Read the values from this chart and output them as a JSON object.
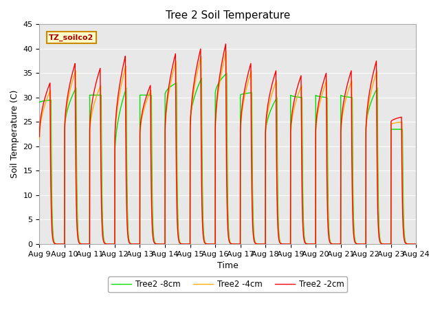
{
  "title": "Tree 2 Soil Temperature",
  "ylabel": "Soil Temperature (C)",
  "xlabel": "Time",
  "ylim": [
    0,
    45
  ],
  "yticks": [
    0,
    5,
    10,
    15,
    20,
    25,
    30,
    35,
    40,
    45
  ],
  "xtick_labels": [
    "Aug 9",
    "Aug 10",
    "Aug 11",
    "Aug 12",
    "Aug 13",
    "Aug 14",
    "Aug 15",
    "Aug 16",
    "Aug 17",
    "Aug 18",
    "Aug 19",
    "Aug 20",
    "Aug 21",
    "Aug 22",
    "Aug 23",
    "Aug 24"
  ],
  "label_box_text": "TZ_soilco2",
  "label_box_bg": "#ffffcc",
  "label_box_edge": "#cc8800",
  "label_box_text_color": "#aa0000",
  "line_2cm_color": "#ff0000",
  "line_4cm_color": "#ffaa00",
  "line_8cm_color": "#00dd00",
  "line_width": 1.0,
  "background_color": "#ffffff",
  "plot_bg_color": "#e8e8e8",
  "grid_color": "#ffffff",
  "legend_labels": [
    "Tree2 -2cm",
    "Tree2 -4cm",
    "Tree2 -8cm"
  ],
  "title_fontsize": 11,
  "axis_label_fontsize": 9,
  "tick_fontsize": 8,
  "days": 15,
  "day_peaks_2cm": [
    33.0,
    37.0,
    36.0,
    38.5,
    32.5,
    39.0,
    40.0,
    41.0,
    37.0,
    35.5,
    34.5,
    35.0,
    35.5,
    37.5,
    26.0
  ],
  "day_peaks_4cm": [
    31.5,
    35.5,
    32.5,
    36.5,
    31.5,
    37.5,
    38.5,
    39.5,
    35.5,
    33.5,
    32.5,
    33.5,
    33.5,
    35.5,
    25.0
  ],
  "day_peaks_8cm": [
    29.5,
    32.0,
    30.5,
    32.0,
    30.5,
    33.0,
    34.0,
    35.0,
    31.0,
    30.0,
    30.0,
    30.0,
    30.0,
    32.0,
    23.5
  ],
  "day_mins_all": [
    0,
    0,
    0,
    0,
    0,
    0,
    0,
    0,
    0,
    0,
    0,
    0,
    0,
    0,
    0,
    0
  ],
  "day_starts_2cm": [
    22.0,
    22.5,
    22.5,
    20.0,
    22.0,
    22.0,
    22.0,
    22.0,
    22.0,
    22.0,
    22.0,
    22.0,
    22.0,
    22.0,
    25.0
  ],
  "day_starts_4cm": [
    21.5,
    22.0,
    22.0,
    19.5,
    21.5,
    21.5,
    21.5,
    21.5,
    21.5,
    21.5,
    21.5,
    21.5,
    21.5,
    21.5,
    24.5
  ],
  "day_starts_8cm": [
    29.0,
    23.0,
    30.5,
    17.5,
    30.5,
    30.5,
    24.0,
    30.5,
    30.5,
    22.0,
    30.5,
    30.5,
    30.5,
    23.0,
    23.5
  ]
}
